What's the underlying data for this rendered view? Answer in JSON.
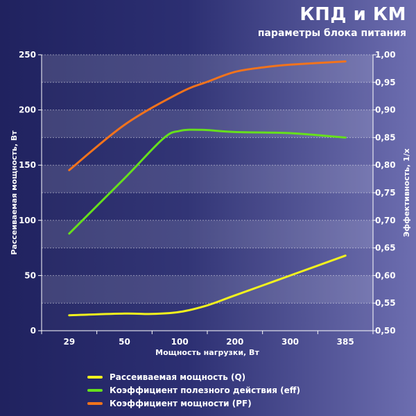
{
  "header": {
    "title": "КПД и КМ",
    "subtitle": "параметры блока питания"
  },
  "chart_data": {
    "type": "line",
    "xlabel": "Мощность нагрузки, Вт",
    "ylabel_left": "Рассеиваемая мощность, Вт",
    "ylabel_right": "Эффективность, 1/x",
    "categories": [
      "29",
      "50",
      "100",
      "200",
      "300",
      "385"
    ],
    "y_left": {
      "min": 0,
      "max": 250,
      "ticks": [
        "0",
        "50",
        "100",
        "150",
        "200",
        "250"
      ]
    },
    "y_right": {
      "min": 0.5,
      "max": 1.0,
      "ticks": [
        "0,50",
        "0,55",
        "0,60",
        "0,65",
        "0,70",
        "0,75",
        "0,80",
        "0,85",
        "0,90",
        "0,95",
        "1,00"
      ]
    },
    "grid": true,
    "legend_position": "bottom",
    "series": [
      {
        "name": "Рассеиваемая мощность (Q)",
        "axis": "left",
        "color": "#f2f21e",
        "points": [
          [
            0,
            14
          ],
          [
            1,
            15.5
          ],
          [
            1.5,
            15.2
          ],
          [
            2,
            17
          ],
          [
            2.5,
            23
          ],
          [
            3,
            32
          ],
          [
            4,
            50
          ],
          [
            5,
            68
          ]
        ]
      },
      {
        "name": "Коэффициент полезного действия (eff)",
        "axis": "right",
        "color": "#66e01c",
        "points": [
          [
            0,
            0.676
          ],
          [
            1,
            0.776
          ],
          [
            1.7,
            0.848
          ],
          [
            2,
            0.862
          ],
          [
            2.4,
            0.864
          ],
          [
            3,
            0.86
          ],
          [
            4,
            0.858
          ],
          [
            5,
            0.85
          ]
        ]
      },
      {
        "name": "Коэффициент мощности (PF)",
        "axis": "right",
        "color": "#f2731c",
        "points": [
          [
            0,
            0.791
          ],
          [
            1,
            0.873
          ],
          [
            2,
            0.931
          ],
          [
            2.5,
            0.951
          ],
          [
            3,
            0.969
          ],
          [
            3.5,
            0.977
          ],
          [
            4,
            0.982
          ],
          [
            5,
            0.988
          ]
        ]
      }
    ]
  }
}
